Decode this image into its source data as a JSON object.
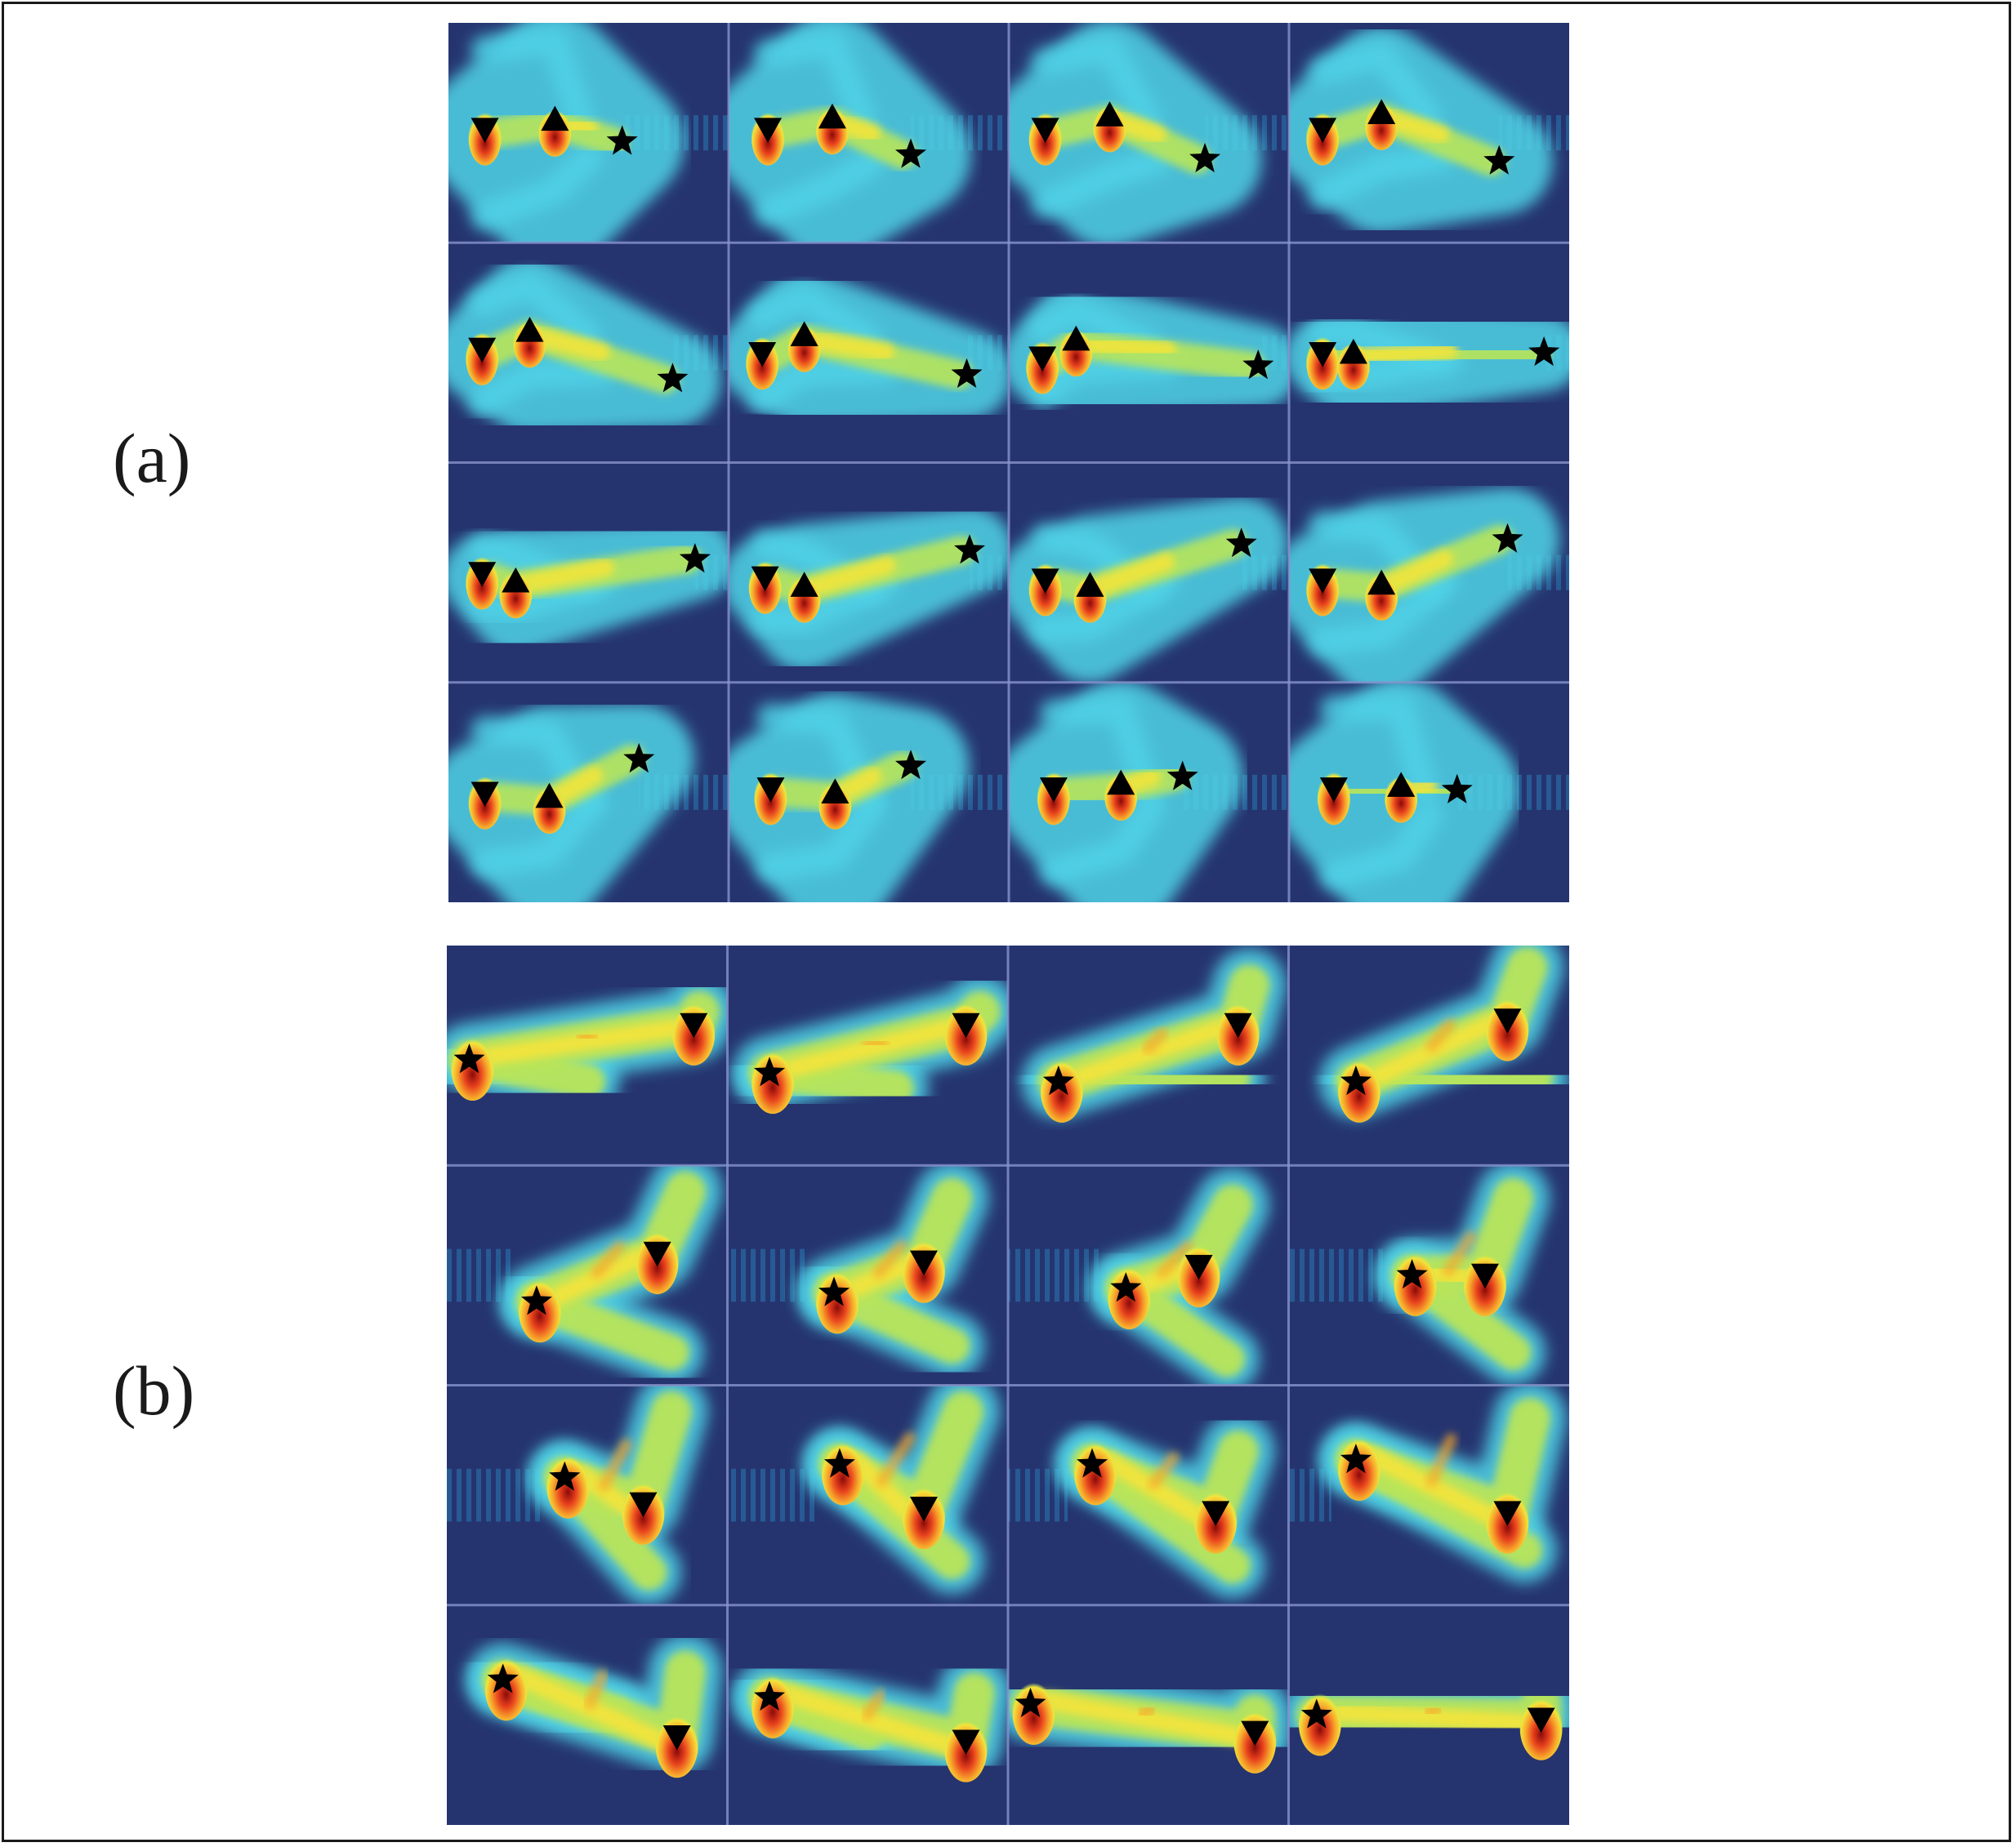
{
  "figure": {
    "panels": [
      {
        "id": "a",
        "label": "(a)"
      },
      {
        "id": "b",
        "label": "(b)"
      }
    ],
    "grid": {
      "rows": 4,
      "cols": 4
    },
    "colors": {
      "background": "#25346f",
      "grid_line": "#8893cc",
      "colormap": [
        "#2b9fd9",
        "#4fd3e8",
        "#b8e55a",
        "#f2e43c",
        "#f7a52b",
        "#e8421d",
        "#8c0a0a"
      ],
      "marker": "#000000"
    },
    "markers": {
      "a": [
        "triangle-down",
        "triangle-up",
        "star"
      ],
      "b": [
        "star",
        "triangle-down"
      ]
    }
  }
}
